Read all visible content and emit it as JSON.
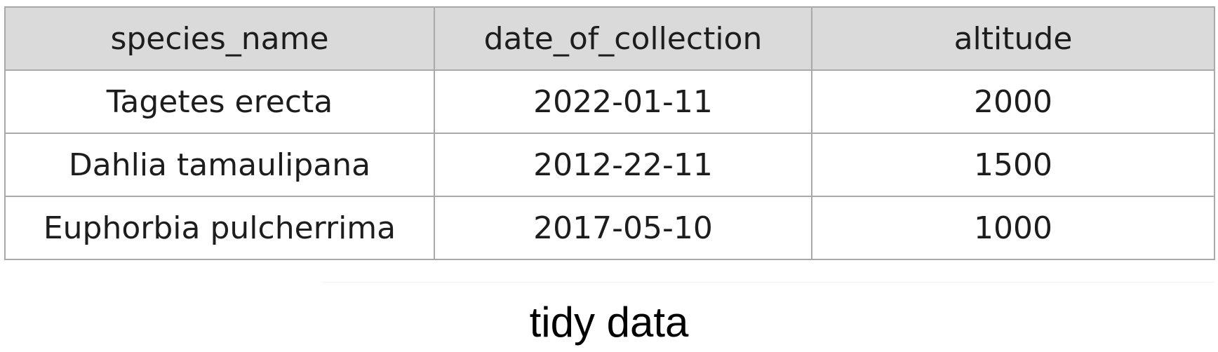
{
  "table": {
    "headers": [
      "species_name",
      "date_of_collection",
      "altitude"
    ],
    "rows": [
      [
        "Tagetes erecta",
        "2022-01-11",
        "2000"
      ],
      [
        "Dahlia tamaulipana",
        "2012-22-11",
        "1500"
      ],
      [
        "Euphorbia pulcherrima",
        "2017-05-10",
        "1000"
      ]
    ]
  },
  "caption": "tidy data"
}
